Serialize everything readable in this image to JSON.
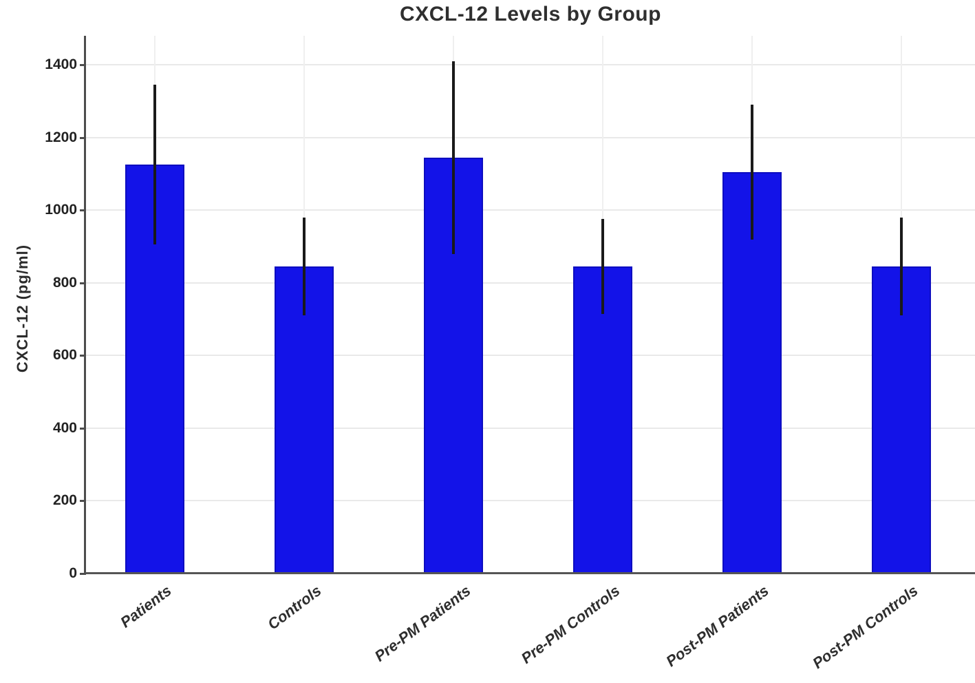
{
  "title": "CXCL-12 Levels by Group",
  "chart_data": {
    "type": "bar",
    "title": "CXCL-12 Levels by Group",
    "xlabel": "",
    "ylabel": "CXCL-12 (pg/ml)",
    "categories": [
      "Patients",
      "Controls",
      "Pre-PM Patients",
      "Pre-PM Controls",
      "Post-PM Patients",
      "Post-PM Controls"
    ],
    "values": [
      1125,
      845,
      1145,
      845,
      1105,
      845
    ],
    "error_bars": [
      220,
      135,
      265,
      130,
      185,
      135
    ],
    "yticks": [
      0,
      200,
      400,
      600,
      800,
      1000,
      1200,
      1400
    ],
    "ylim": [
      0,
      1480
    ],
    "grid": true,
    "legend": false,
    "colors": {
      "bar_fill": "#1313e8",
      "bar_edge": "#0d0dc0",
      "error_bar": "#1a1a1a",
      "gridline": "#e9e9e9",
      "spine": "#4d4d4d",
      "text": "#2b2b2b"
    }
  }
}
